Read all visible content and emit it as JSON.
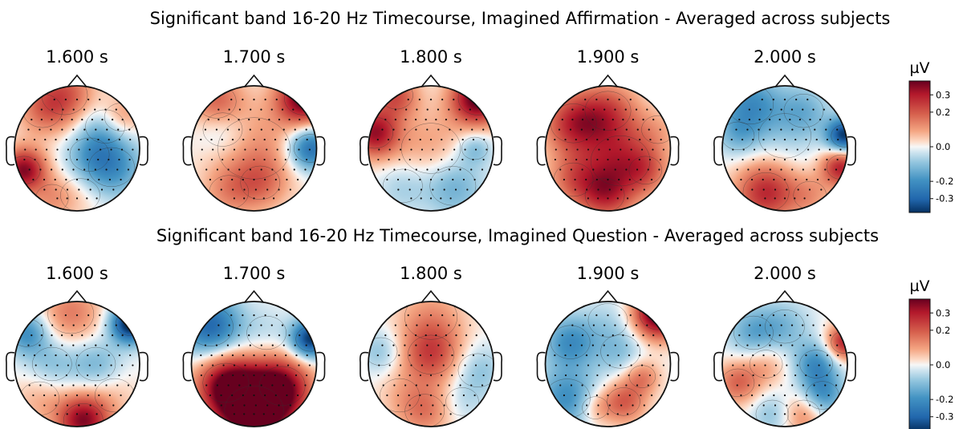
{
  "chart_data": [
    {
      "type": "heatmap",
      "subtype": "eeg-topomap-series",
      "title": "Significant band 16-20 Hz Timecourse, Imagined Affirmation - Averaged across subjects",
      "times": [
        "1.600 s",
        "1.700 s",
        "1.800 s",
        "1.900 s",
        "2.000 s"
      ],
      "colorbar": {
        "label": "µV",
        "ticks": [
          "0.3",
          "0.2",
          "0.0",
          "-0.2",
          "-0.3"
        ],
        "tick_values": [
          0.3,
          0.2,
          0.0,
          -0.2,
          -0.3
        ],
        "range": [
          -0.38,
          0.38
        ],
        "cmap": "RdBu_r"
      },
      "maps": [
        {
          "time": 1.6,
          "blobs": [
            [
              -0.2,
              0.85,
              0.35,
              0.2
            ],
            [
              -0.55,
              0.6,
              0.3,
              0.12
            ],
            [
              -0.85,
              -0.35,
              0.25,
              0.35
            ],
            [
              0.55,
              -0.3,
              0.35,
              -0.2
            ],
            [
              0.2,
              -0.1,
              0.3,
              -0.1
            ],
            [
              0.45,
              0.35,
              0.3,
              -0.12
            ],
            [
              0.05,
              -0.75,
              0.3,
              0.05
            ],
            [
              -0.4,
              -0.8,
              0.25,
              0.1
            ],
            [
              0.7,
              0.5,
              0.25,
              0.15
            ]
          ]
        },
        {
          "time": 1.7,
          "blobs": [
            [
              0.8,
              0.8,
              0.3,
              0.38
            ],
            [
              0.0,
              0.0,
              0.55,
              0.12
            ],
            [
              -0.5,
              0.3,
              0.3,
              -0.1
            ],
            [
              0.9,
              0.0,
              0.25,
              -0.3
            ],
            [
              -0.4,
              -0.7,
              0.3,
              0.1
            ],
            [
              0.1,
              -0.55,
              0.3,
              0.12
            ],
            [
              -0.6,
              0.75,
              0.3,
              0.18
            ]
          ]
        },
        {
          "time": 1.8,
          "blobs": [
            [
              0.75,
              0.8,
              0.3,
              0.4
            ],
            [
              -0.9,
              0.25,
              0.28,
              0.32
            ],
            [
              0.0,
              0.0,
              0.45,
              0.1
            ],
            [
              0.35,
              -0.6,
              0.35,
              -0.15
            ],
            [
              -0.45,
              -0.6,
              0.3,
              -0.08
            ],
            [
              -0.55,
              0.85,
              0.25,
              0.2
            ],
            [
              0.7,
              0.0,
              0.2,
              -0.12
            ]
          ]
        },
        {
          "time": 1.9,
          "blobs": [
            [
              0.0,
              0.6,
              0.35,
              0.18
            ],
            [
              -0.55,
              0.4,
              0.35,
              0.25
            ],
            [
              0.2,
              -0.2,
              0.45,
              0.25
            ],
            [
              -0.55,
              -0.5,
              0.3,
              0.15
            ],
            [
              0.6,
              -0.35,
              0.25,
              0.1
            ],
            [
              0.8,
              0.3,
              0.25,
              0.05
            ],
            [
              -0.05,
              -0.75,
              0.3,
              0.2
            ]
          ]
        },
        {
          "time": 2.0,
          "blobs": [
            [
              -0.55,
              0.7,
              0.35,
              -0.2
            ],
            [
              0.3,
              0.6,
              0.3,
              -0.12
            ],
            [
              0.95,
              0.2,
              0.2,
              -0.38
            ],
            [
              0.9,
              -0.3,
              0.22,
              0.3
            ],
            [
              -0.3,
              -0.7,
              0.35,
              0.28
            ],
            [
              0.4,
              -0.75,
              0.25,
              0.1
            ],
            [
              0.0,
              0.2,
              0.4,
              -0.05
            ],
            [
              -0.75,
              0.2,
              0.25,
              -0.1
            ]
          ]
        }
      ]
    },
    {
      "type": "heatmap",
      "subtype": "eeg-topomap-series",
      "title": "Significant band 16-20 Hz Timecourse, Imagined Question - Averaged across subjects",
      "times": [
        "1.600 s",
        "1.700 s",
        "1.800 s",
        "1.900 s",
        "2.000 s"
      ],
      "colorbar": {
        "label": "µV",
        "ticks": [
          "0.3",
          "0.2",
          "0.0",
          "-0.2",
          "-0.3"
        ],
        "tick_values": [
          0.3,
          0.2,
          0.0,
          -0.2,
          -0.3
        ],
        "range": [
          -0.38,
          0.38
        ],
        "cmap": "RdBu_r"
      },
      "maps": [
        {
          "time": 1.6,
          "blobs": [
            [
              0.85,
              0.65,
              0.22,
              -0.42
            ],
            [
              -0.8,
              0.5,
              0.25,
              -0.2
            ],
            [
              -0.1,
              0.8,
              0.35,
              0.15
            ],
            [
              0.1,
              -0.9,
              0.3,
              0.35
            ],
            [
              -0.4,
              0.0,
              0.3,
              -0.1
            ],
            [
              0.3,
              0.0,
              0.3,
              -0.12
            ],
            [
              -0.6,
              -0.55,
              0.3,
              0.08
            ],
            [
              0.6,
              -0.5,
              0.3,
              0.05
            ]
          ]
        },
        {
          "time": 1.7,
          "blobs": [
            [
              -0.7,
              0.6,
              0.35,
              -0.3
            ],
            [
              0.9,
              0.4,
              0.22,
              -0.38
            ],
            [
              0.0,
              -0.75,
              0.45,
              0.45
            ],
            [
              -0.45,
              -0.3,
              0.35,
              0.3
            ],
            [
              0.45,
              -0.35,
              0.35,
              0.28
            ],
            [
              0.2,
              0.5,
              0.3,
              -0.05
            ]
          ]
        },
        {
          "time": 1.8,
          "blobs": [
            [
              0.0,
              0.15,
              0.35,
              0.22
            ],
            [
              -0.8,
              0.2,
              0.25,
              -0.1
            ],
            [
              0.75,
              -0.1,
              0.3,
              -0.1
            ],
            [
              0.0,
              0.75,
              0.4,
              0.1
            ],
            [
              -0.1,
              -0.75,
              0.3,
              0.15
            ],
            [
              0.5,
              -0.6,
              0.25,
              -0.05
            ],
            [
              -0.5,
              -0.5,
              0.3,
              0.05
            ]
          ]
        },
        {
          "time": 1.9,
          "blobs": [
            [
              0.8,
              0.8,
              0.28,
              0.42
            ],
            [
              -0.6,
              0.35,
              0.3,
              -0.2
            ],
            [
              0.2,
              0.2,
              0.3,
              -0.1
            ],
            [
              -0.65,
              -0.55,
              0.35,
              -0.2
            ],
            [
              0.25,
              -0.6,
              0.25,
              0.2
            ],
            [
              0.55,
              -0.2,
              0.2,
              0.15
            ],
            [
              -0.2,
              -0.7,
              0.2,
              0.1
            ],
            [
              0.0,
              0.7,
              0.3,
              -0.05
            ]
          ]
        },
        {
          "time": 2.0,
          "blobs": [
            [
              0.95,
              0.35,
              0.2,
              0.3
            ],
            [
              0.5,
              0.0,
              0.25,
              -0.2
            ],
            [
              0.6,
              -0.5,
              0.25,
              -0.2
            ],
            [
              -0.5,
              0.5,
              0.3,
              -0.15
            ],
            [
              -0.3,
              0.0,
              0.25,
              0.1
            ],
            [
              -0.75,
              -0.3,
              0.25,
              0.18
            ],
            [
              0.3,
              -0.8,
              0.25,
              0.15
            ],
            [
              -0.2,
              -0.8,
              0.25,
              -0.1
            ],
            [
              0.0,
              0.6,
              0.3,
              -0.1
            ]
          ]
        }
      ]
    }
  ]
}
